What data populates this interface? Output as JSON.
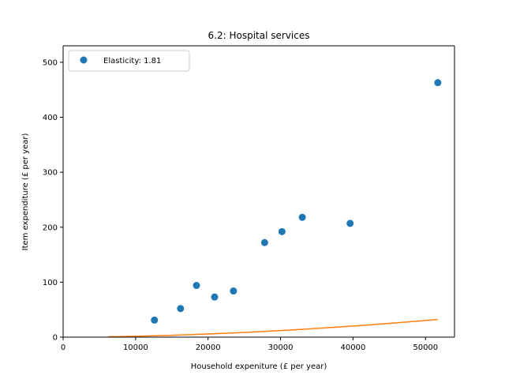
{
  "chart_data": {
    "type": "scatter",
    "title": "6.2: Hospital services",
    "xlabel": "Household expeniture (£ per year)",
    "ylabel": "Item expenditure (£ per year)",
    "xlim": [
      0,
      54000
    ],
    "ylim": [
      0,
      530
    ],
    "x_ticks": [
      0,
      10000,
      20000,
      30000,
      40000,
      50000
    ],
    "y_ticks": [
      0,
      100,
      200,
      300,
      400,
      500
    ],
    "x_tick_labels": [
      "0",
      "10000",
      "20000",
      "30000",
      "40000",
      "50000"
    ],
    "y_tick_labels": [
      "0",
      "100",
      "200",
      "300",
      "400",
      "500"
    ],
    "grid": false,
    "legend_position": "top-left",
    "series": [
      {
        "name": "Elasticity: 1.81",
        "kind": "points",
        "color": "#1f77b4",
        "points": [
          {
            "x": 12600,
            "y": 31
          },
          {
            "x": 16200,
            "y": 52
          },
          {
            "x": 18400,
            "y": 94
          },
          {
            "x": 20900,
            "y": 73
          },
          {
            "x": 23500,
            "y": 84
          },
          {
            "x": 27800,
            "y": 172
          },
          {
            "x": 30200,
            "y": 192
          },
          {
            "x": 33000,
            "y": 218
          },
          {
            "x": 39600,
            "y": 207
          },
          {
            "x": 51700,
            "y": 463
          }
        ]
      },
      {
        "kind": "fit-line",
        "color": "#ff7f0e",
        "x_range": [
          6200,
          51700
        ],
        "coefficient": 9.48e-08,
        "exponent": 1.81
      }
    ]
  }
}
